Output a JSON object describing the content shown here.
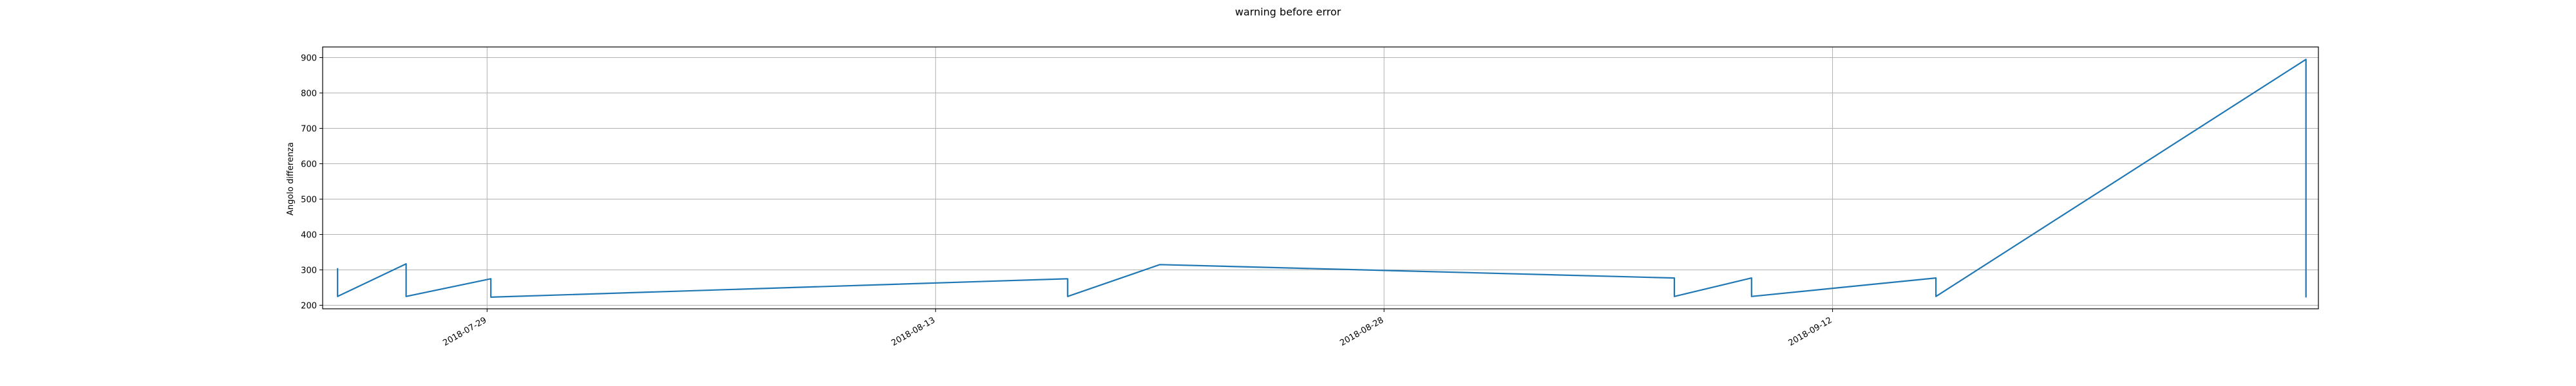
{
  "chart_data": {
    "type": "line",
    "title": "warning before error",
    "xlabel": "",
    "ylabel": "Angolo differenza",
    "x_type": "date",
    "xlim": [
      "2018-07-23T12:00",
      "2018-09-28T06:00"
    ],
    "ylim": [
      190,
      930
    ],
    "grid": true,
    "legend": "none",
    "colors": {
      "line": "#1f77b4",
      "grid": "#b0b0b0",
      "axis": "#000000"
    },
    "x_ticks": [
      "2018-07-29",
      "2018-08-13",
      "2018-08-28",
      "2018-09-12"
    ],
    "y_ticks": [
      200,
      300,
      400,
      500,
      600,
      700,
      800,
      900
    ],
    "series": [
      {
        "x": [
          "2018-07-24T00:00",
          "2018-07-24T00:00",
          "2018-07-26T07:00",
          "2018-07-26T07:00",
          "2018-07-29T03:00",
          "2018-07-29T03:00",
          "2018-08-17T10:00",
          "2018-08-17T10:00",
          "2018-08-20T12:00",
          "2018-09-06T17:00",
          "2018-09-06T17:00",
          "2018-09-09T07:00",
          "2018-09-09T07:00",
          "2018-09-15T11:00",
          "2018-09-15T11:00",
          "2018-09-27T20:00",
          "2018-09-27T20:00"
        ],
        "y": [
          305,
          225,
          317,
          225,
          275,
          223,
          275,
          225,
          315,
          277,
          225,
          277,
          225,
          277,
          225,
          895,
          222
        ]
      }
    ]
  }
}
